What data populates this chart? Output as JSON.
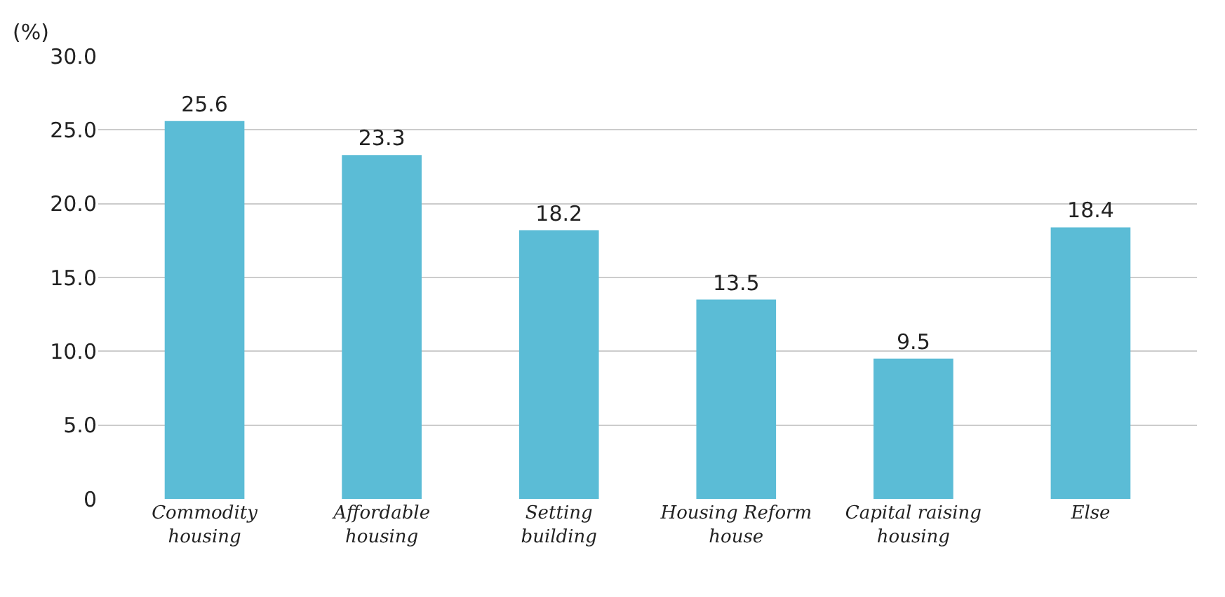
{
  "chart_data": {
    "type": "bar",
    "ylabel": "(%)",
    "categories": [
      "Commodity\nhousing",
      "Affordable\nhousing",
      "Setting\nbuilding",
      "Housing Reform\nhouse",
      "Capital raising\nhousing",
      "Else"
    ],
    "values": [
      25.6,
      23.3,
      18.2,
      13.5,
      9.5,
      18.4
    ],
    "color": "#5bbcd6",
    "ylim": [
      0,
      30
    ],
    "yticks": [
      {
        "value": 0,
        "label": "0"
      },
      {
        "value": 5,
        "label": "5.0"
      },
      {
        "value": 10,
        "label": "10.0"
      },
      {
        "value": 15,
        "label": "15.0"
      },
      {
        "value": 20,
        "label": "20.0"
      },
      {
        "value": 25,
        "label": "25.0"
      },
      {
        "value": 30,
        "label": "30.0"
      }
    ],
    "grid": "y",
    "data_labels": true,
    "legend": false
  }
}
